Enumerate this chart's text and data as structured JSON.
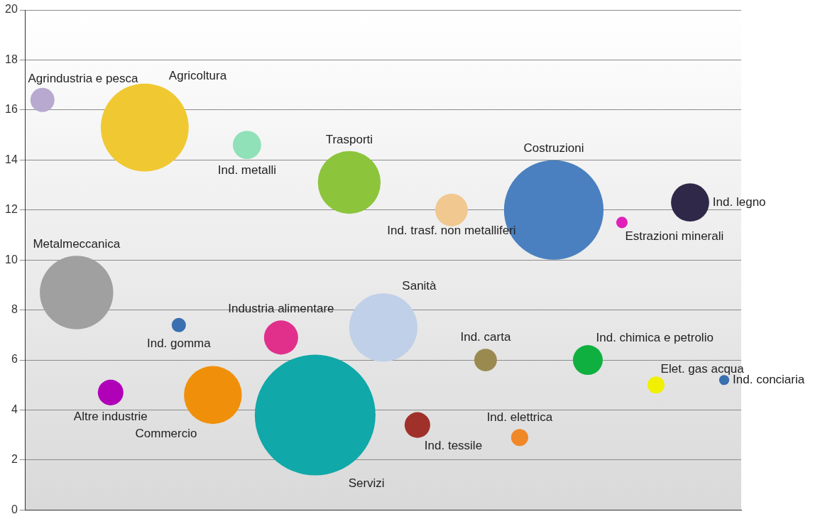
{
  "chart_data": {
    "type": "bubble",
    "categories": [
      null,
      null,
      null,
      null,
      null,
      null,
      null,
      null,
      null,
      null,
      null,
      null,
      null,
      null,
      null,
      null,
      null,
      null,
      null,
      null,
      null
    ],
    "series": [
      {
        "name": "Agrindustria e pesca",
        "color": "#b8a9d0",
        "values": [
          16.4,
          null,
          null,
          null,
          null,
          null,
          null,
          null,
          null,
          null,
          null,
          null,
          null,
          null,
          null,
          null,
          null,
          null,
          null,
          null,
          null
        ],
        "sizes": [
          0.04,
          null,
          null,
          null,
          null,
          null,
          null,
          null,
          null,
          null,
          null,
          null,
          null,
          null,
          null,
          null,
          null,
          null,
          null,
          null,
          null
        ]
      },
      {
        "name": "Metalmeccanica",
        "color": "#a0a0a0",
        "values": [
          null,
          8.7,
          null,
          null,
          null,
          null,
          null,
          null,
          null,
          null,
          null,
          null,
          null,
          null,
          null,
          null,
          null,
          null,
          null,
          null,
          null
        ],
        "sizes": [
          null,
          0.37,
          null,
          null,
          null,
          null,
          null,
          null,
          null,
          null,
          null,
          null,
          null,
          null,
          null,
          null,
          null,
          null,
          null,
          null,
          null
        ]
      },
      {
        "name": "Altre industrie",
        "color": "#b000b8",
        "values": [
          null,
          null,
          4.7,
          null,
          null,
          null,
          null,
          null,
          null,
          null,
          null,
          null,
          null,
          null,
          null,
          null,
          null,
          null,
          null,
          null,
          null
        ],
        "sizes": [
          null,
          null,
          0.045,
          null,
          null,
          null,
          null,
          null,
          null,
          null,
          null,
          null,
          null,
          null,
          null,
          null,
          null,
          null,
          null,
          null,
          null
        ]
      },
      {
        "name": "Agricoltura",
        "color": "#f0c832",
        "values": [
          null,
          null,
          null,
          15.3,
          null,
          null,
          null,
          null,
          null,
          null,
          null,
          null,
          null,
          null,
          null,
          null,
          null,
          null,
          null,
          null,
          null
        ],
        "sizes": [
          null,
          null,
          null,
          0.53,
          null,
          null,
          null,
          null,
          null,
          null,
          null,
          null,
          null,
          null,
          null,
          null,
          null,
          null,
          null,
          null,
          null
        ]
      },
      {
        "name": "Ind. gomma",
        "color": "#3a6fb0",
        "values": [
          null,
          null,
          null,
          null,
          7.4,
          null,
          null,
          null,
          null,
          null,
          null,
          null,
          null,
          null,
          null,
          null,
          null,
          null,
          null,
          null,
          null
        ],
        "sizes": [
          null,
          null,
          null,
          null,
          0.014,
          null,
          null,
          null,
          null,
          null,
          null,
          null,
          null,
          null,
          null,
          null,
          null,
          null,
          null,
          null,
          null
        ]
      },
      {
        "name": "Commercio",
        "color": "#f0900a",
        "values": [
          null,
          null,
          null,
          null,
          null,
          4.6,
          null,
          null,
          null,
          null,
          null,
          null,
          null,
          null,
          null,
          null,
          null,
          null,
          null,
          null,
          null
        ],
        "sizes": [
          null,
          null,
          null,
          null,
          null,
          0.23,
          null,
          null,
          null,
          null,
          null,
          null,
          null,
          null,
          null,
          null,
          null,
          null,
          null,
          null,
          null
        ]
      },
      {
        "name": "Ind. metalli",
        "color": "#90e0b8",
        "values": [
          null,
          null,
          null,
          null,
          null,
          null,
          14.6,
          null,
          null,
          null,
          null,
          null,
          null,
          null,
          null,
          null,
          null,
          null,
          null,
          null,
          null
        ],
        "sizes": [
          null,
          null,
          null,
          null,
          null,
          null,
          0.055,
          null,
          null,
          null,
          null,
          null,
          null,
          null,
          null,
          null,
          null,
          null,
          null,
          null,
          null
        ]
      },
      {
        "name": "Industria alimentare",
        "color": "#e0308c",
        "values": [
          null,
          null,
          null,
          null,
          null,
          null,
          null,
          6.9,
          null,
          null,
          null,
          null,
          null,
          null,
          null,
          null,
          null,
          null,
          null,
          null,
          null
        ],
        "sizes": [
          null,
          null,
          null,
          null,
          null,
          null,
          null,
          0.08,
          null,
          null,
          null,
          null,
          null,
          null,
          null,
          null,
          null,
          null,
          null,
          null,
          null
        ]
      },
      {
        "name": "Servizi",
        "color": "#10a8a8",
        "values": [
          null,
          null,
          null,
          null,
          null,
          null,
          null,
          null,
          3.8,
          null,
          null,
          null,
          null,
          null,
          null,
          null,
          null,
          null,
          null,
          null,
          null
        ],
        "sizes": [
          null,
          null,
          null,
          null,
          null,
          null,
          null,
          null,
          1,
          null,
          null,
          null,
          null,
          null,
          null,
          null,
          null,
          null,
          null,
          null,
          null
        ]
      },
      {
        "name": "Trasporti",
        "color": "#8cc43c",
        "values": [
          null,
          null,
          null,
          null,
          null,
          null,
          null,
          null,
          null,
          13.1,
          null,
          null,
          null,
          null,
          null,
          null,
          null,
          null,
          null,
          null,
          null
        ],
        "sizes": [
          null,
          null,
          null,
          null,
          null,
          null,
          null,
          null,
          null,
          0.27,
          null,
          null,
          null,
          null,
          null,
          null,
          null,
          null,
          null,
          null,
          null
        ]
      },
      {
        "name": "Sanità",
        "color": "#c0d0e8",
        "values": [
          null,
          null,
          null,
          null,
          null,
          null,
          null,
          null,
          null,
          null,
          7.3,
          null,
          null,
          null,
          null,
          null,
          null,
          null,
          null,
          null,
          null
        ],
        "sizes": [
          null,
          null,
          null,
          null,
          null,
          null,
          null,
          null,
          null,
          null,
          0.32,
          null,
          null,
          null,
          null,
          null,
          null,
          null,
          null,
          null,
          null
        ]
      },
      {
        "name": "Ind. tessile",
        "color": "#a0302a",
        "values": [
          null,
          null,
          null,
          null,
          null,
          null,
          null,
          null,
          null,
          null,
          null,
          3.4,
          null,
          null,
          null,
          null,
          null,
          null,
          null,
          null,
          null
        ],
        "sizes": [
          null,
          null,
          null,
          null,
          null,
          null,
          null,
          null,
          null,
          null,
          null,
          0.045,
          null,
          null,
          null,
          null,
          null,
          null,
          null,
          null,
          null
        ]
      },
      {
        "name": "Ind. trasf. non metalliferi",
        "color": "#f0c890",
        "values": [
          null,
          null,
          null,
          null,
          null,
          null,
          null,
          null,
          null,
          null,
          null,
          null,
          12.0,
          null,
          null,
          null,
          null,
          null,
          null,
          null,
          null
        ],
        "sizes": [
          null,
          null,
          null,
          null,
          null,
          null,
          null,
          null,
          null,
          null,
          null,
          null,
          0.073,
          null,
          null,
          null,
          null,
          null,
          null,
          null,
          null
        ]
      },
      {
        "name": "Ind. carta",
        "color": "#9a8a50",
        "values": [
          null,
          null,
          null,
          null,
          null,
          null,
          null,
          null,
          null,
          null,
          null,
          null,
          null,
          6.0,
          null,
          null,
          null,
          null,
          null,
          null,
          null
        ],
        "sizes": [
          null,
          null,
          null,
          null,
          null,
          null,
          null,
          null,
          null,
          null,
          null,
          null,
          null,
          0.035,
          null,
          null,
          null,
          null,
          null,
          null,
          null
        ]
      },
      {
        "name": "Ind. elettrica",
        "color": "#f08828",
        "values": [
          null,
          null,
          null,
          null,
          null,
          null,
          null,
          null,
          null,
          null,
          null,
          null,
          null,
          null,
          2.9,
          null,
          null,
          null,
          null,
          null,
          null
        ],
        "sizes": [
          null,
          null,
          null,
          null,
          null,
          null,
          null,
          null,
          null,
          null,
          null,
          null,
          null,
          null,
          0.02,
          null,
          null,
          null,
          null,
          null,
          null
        ]
      },
      {
        "name": "Costruzioni",
        "color": "#4a80c0",
        "values": [
          null,
          null,
          null,
          null,
          null,
          null,
          null,
          null,
          null,
          null,
          null,
          null,
          null,
          null,
          null,
          12.0,
          null,
          null,
          null,
          null,
          null
        ],
        "sizes": [
          null,
          null,
          null,
          null,
          null,
          null,
          null,
          null,
          null,
          null,
          null,
          null,
          null,
          null,
          null,
          0.68,
          null,
          null,
          null,
          null,
          null
        ]
      },
      {
        "name": "Ind. chimica e petrolio",
        "color": "#10b040",
        "values": [
          null,
          null,
          null,
          null,
          null,
          null,
          null,
          null,
          null,
          null,
          null,
          null,
          null,
          null,
          null,
          null,
          6.0,
          null,
          null,
          null,
          null
        ],
        "sizes": [
          null,
          null,
          null,
          null,
          null,
          null,
          null,
          null,
          null,
          null,
          null,
          null,
          null,
          null,
          null,
          null,
          0.061,
          null,
          null,
          null,
          null
        ]
      },
      {
        "name": "Estrazioni minerali",
        "color": "#e020b8",
        "values": [
          null,
          null,
          null,
          null,
          null,
          null,
          null,
          null,
          null,
          null,
          null,
          null,
          null,
          null,
          null,
          null,
          null,
          11.5,
          null,
          null,
          null
        ],
        "sizes": [
          null,
          null,
          null,
          null,
          null,
          null,
          null,
          null,
          null,
          null,
          null,
          null,
          null,
          null,
          null,
          null,
          null,
          0.009,
          null,
          null,
          null
        ]
      },
      {
        "name": "Elet. gas acqua",
        "color": "#f0f000",
        "values": [
          null,
          null,
          null,
          null,
          null,
          null,
          null,
          null,
          null,
          null,
          null,
          null,
          null,
          null,
          null,
          null,
          null,
          null,
          5.0,
          null,
          null
        ],
        "sizes": [
          null,
          null,
          null,
          null,
          null,
          null,
          null,
          null,
          null,
          null,
          null,
          null,
          null,
          null,
          null,
          null,
          null,
          null,
          0.02,
          null,
          null
        ]
      },
      {
        "name": "Ind. legno",
        "color": "#302848",
        "values": [
          null,
          null,
          null,
          null,
          null,
          null,
          null,
          null,
          null,
          null,
          null,
          null,
          null,
          null,
          null,
          null,
          null,
          null,
          null,
          12.3,
          null
        ],
        "sizes": [
          null,
          null,
          null,
          null,
          null,
          null,
          null,
          null,
          null,
          null,
          null,
          null,
          null,
          null,
          null,
          null,
          null,
          null,
          null,
          0.1,
          null
        ]
      },
      {
        "name": "Ind. conciaria",
        "color": "#3a6fb0",
        "values": [
          null,
          null,
          null,
          null,
          null,
          null,
          null,
          null,
          null,
          null,
          null,
          null,
          null,
          null,
          null,
          null,
          null,
          null,
          null,
          null,
          5.2
        ],
        "sizes": [
          null,
          null,
          null,
          null,
          null,
          null,
          null,
          null,
          null,
          null,
          null,
          null,
          null,
          null,
          null,
          null,
          null,
          null,
          null,
          null,
          0.007
        ]
      }
    ],
    "ylim": [
      0,
      20
    ],
    "yticks": [
      0,
      2,
      4,
      6,
      8,
      10,
      12,
      14,
      16,
      18,
      20
    ],
    "grid": "y",
    "tick_labels": "y"
  }
}
